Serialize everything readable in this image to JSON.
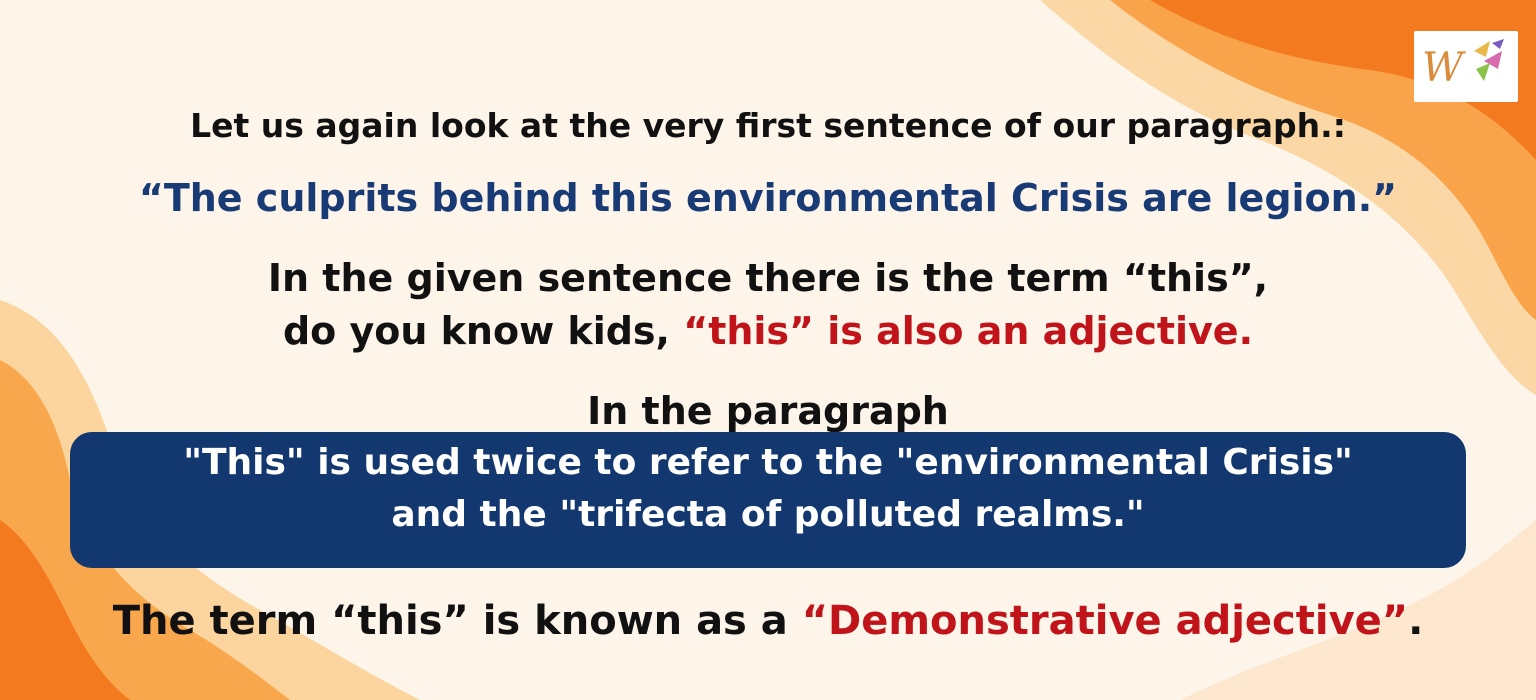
{
  "colors": {
    "background": "#fdf5ea",
    "blue_text": "#183a75",
    "red_text": "#c0141a",
    "box_fill": "#13386f",
    "box_text": "#ffffff",
    "orange": "#f8892a",
    "peach": "#fbc88a"
  },
  "logo": {
    "letter": "W"
  },
  "intro": "Let us again look at the very first sentence of our paragraph.:",
  "quote": "“The culprits behind this environmental Crisis are legion.”",
  "line3": "In the given sentence there is the term “this”,",
  "line4": {
    "prefix": "do you know kids, ",
    "highlight": "“this” is also an adjective."
  },
  "line5": "In the paragraph",
  "box": {
    "line1": "\"This\" is used twice to refer to the \"environmental Crisis\"",
    "line2": "and the \"trifecta of polluted realms.\""
  },
  "conclusion": {
    "prefix": "The term “this” is known as a ",
    "highlight": "“Demonstrative adjective”",
    "suffix": "."
  }
}
